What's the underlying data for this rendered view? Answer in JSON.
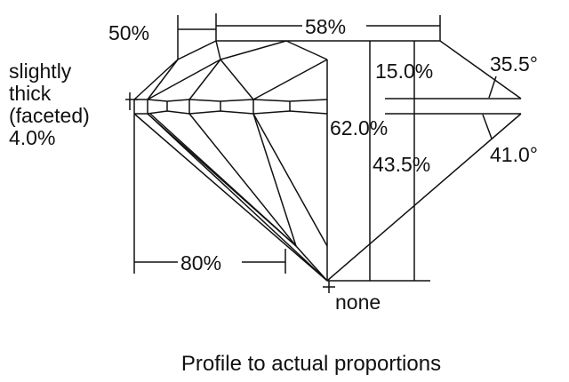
{
  "labels": {
    "girdle_line1": "slightly",
    "girdle_line2": "thick",
    "girdle_line3": "(faceted)",
    "girdle_value": "4.0%",
    "star_length": "50%",
    "table": "58%",
    "total_depth": "62.0%",
    "crown_height": "15.0%",
    "pavilion_depth": "43.5%",
    "crown_angle": "35.5°",
    "pavilion_angle": "41.0°",
    "lower_half": "80%",
    "culet": "none"
  },
  "caption": "Profile to actual proportions"
}
